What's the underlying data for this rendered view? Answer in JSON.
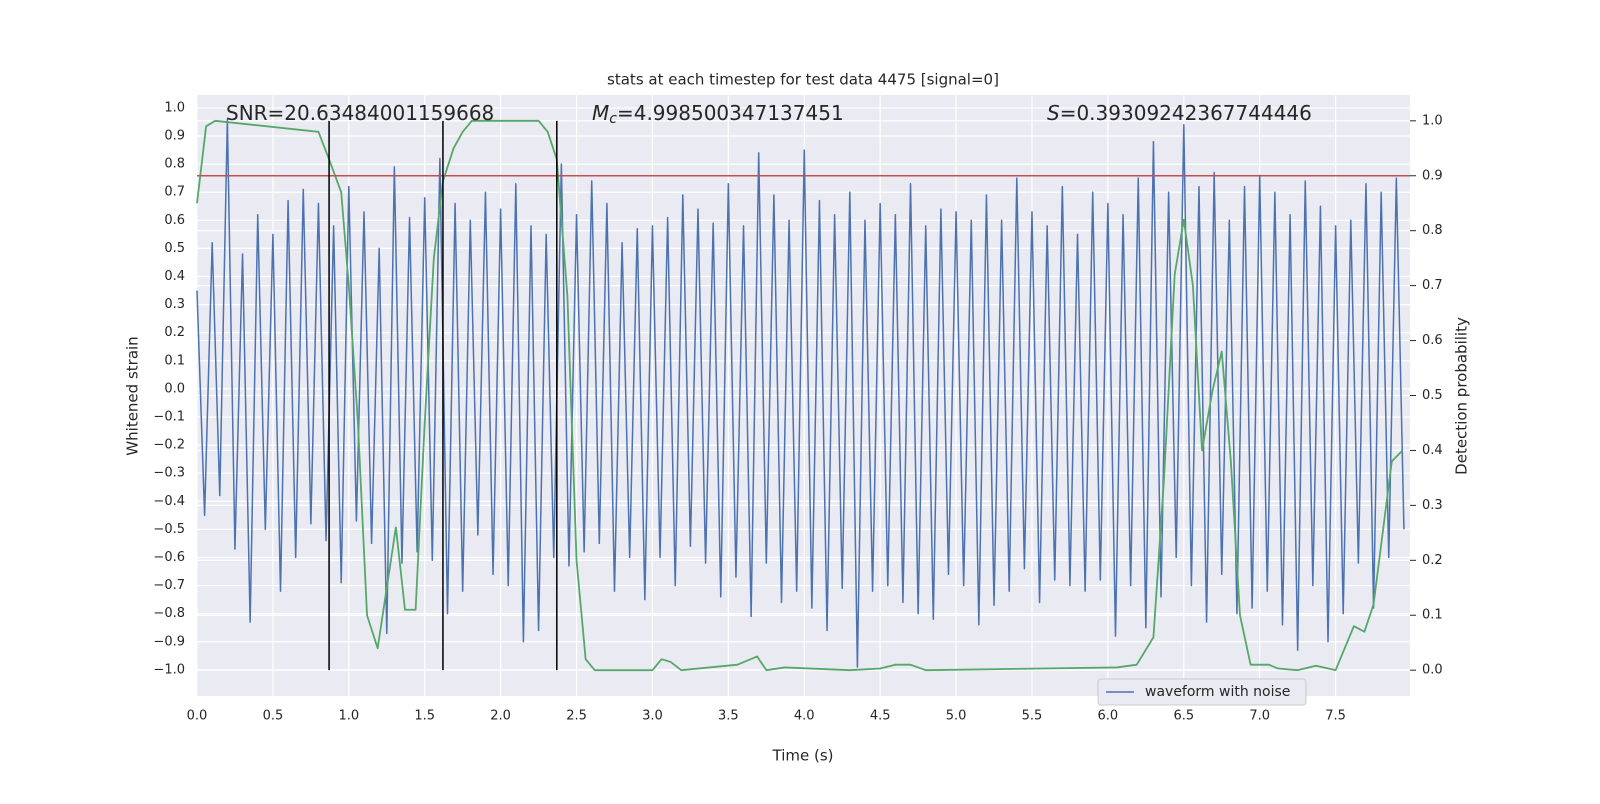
{
  "chart_data": {
    "type": "line",
    "title": "stats at each timestep for test data 4475 [signal=0]",
    "xlabel": "Time (s)",
    "ylabel": "Whitened strain",
    "y2label": "Detection probability",
    "annotations": [
      {
        "text": "SNR=20.63484001159668"
      },
      {
        "symbol": "M",
        "subscript": "c",
        "text": "=4.998500347137451"
      },
      {
        "symbol": "S",
        "text": "=0.39309242367744446"
      }
    ],
    "xlim": [
      0,
      7.99
    ],
    "ylim": [
      -1.093,
      1.046
    ],
    "y2lim": [
      -0.047,
      1.047
    ],
    "xticks": [
      {
        "value": 0,
        "label": "0.0"
      },
      0.5,
      {
        "value": 1,
        "label": "1.0"
      },
      1.5,
      {
        "value": 2,
        "label": "2.0"
      },
      2.5,
      {
        "value": 3,
        "label": "3.0"
      },
      3.5,
      {
        "value": 4,
        "label": "4.0"
      },
      4.5,
      {
        "value": 5,
        "label": "5.0"
      },
      5.5,
      {
        "value": 6,
        "label": "6.0"
      },
      6.5,
      {
        "value": 7,
        "label": "7.0"
      },
      7.5
    ],
    "yticks": [
      {
        "value": -1,
        "label": "−1.0"
      },
      {
        "value": -0.9,
        "label": "−0.9"
      },
      {
        "value": -0.8,
        "label": "−0.8"
      },
      {
        "value": -0.7,
        "label": "−0.7"
      },
      {
        "value": -0.6,
        "label": "−0.6"
      },
      {
        "value": -0.5,
        "label": "−0.5"
      },
      {
        "value": -0.4,
        "label": "−0.4"
      },
      {
        "value": -0.3,
        "label": "−0.3"
      },
      {
        "value": -0.2,
        "label": "−0.2"
      },
      {
        "value": -0.1,
        "label": "−0.1"
      },
      {
        "value": 0,
        "label": "0.0"
      },
      0.1,
      0.2,
      0.3,
      0.4,
      0.5,
      0.6,
      0.7,
      0.8,
      0.9,
      {
        "value": 1,
        "label": "1.0"
      }
    ],
    "y2ticks": [
      {
        "value": 0,
        "label": "0.0"
      },
      0.1,
      0.2,
      0.3,
      0.4,
      0.5,
      0.6,
      0.7,
      0.8,
      0.9,
      {
        "value": 1,
        "label": "1.0"
      }
    ],
    "grid": true,
    "legend": "lower right",
    "series": [
      {
        "name": "waveform with noise",
        "color": "#4c72b0",
        "x": [
          0,
          0.05,
          0.1,
          0.15,
          0.2,
          0.25,
          0.3,
          0.35,
          0.4,
          0.45,
          0.5,
          0.55,
          0.6,
          0.65,
          0.7,
          0.75,
          0.8,
          0.85,
          0.9,
          0.95,
          1,
          1.05,
          1.1,
          1.15,
          1.2,
          1.25,
          1.3,
          1.35,
          1.4,
          1.45,
          1.5,
          1.55,
          1.6,
          1.65,
          1.7,
          1.75,
          1.8,
          1.85,
          1.9,
          1.95,
          2,
          2.05,
          2.1,
          2.15,
          2.2,
          2.25,
          2.3,
          2.35,
          2.4,
          2.45,
          2.5,
          2.55,
          2.6,
          2.65,
          2.7,
          2.75,
          2.8,
          2.85,
          2.9,
          2.95,
          3,
          3.05,
          3.1,
          3.15,
          3.2,
          3.25,
          3.3,
          3.35,
          3.4,
          3.45,
          3.5,
          3.55,
          3.6,
          3.65,
          3.7,
          3.75,
          3.8,
          3.85,
          3.9,
          3.95,
          4,
          4.05,
          4.1,
          4.15,
          4.2,
          4.25,
          4.3,
          4.35,
          4.4,
          4.45,
          4.5,
          4.55,
          4.6,
          4.65,
          4.7,
          4.75,
          4.8,
          4.85,
          4.9,
          4.95,
          5,
          5.05,
          5.1,
          5.15,
          5.2,
          5.25,
          5.3,
          5.35,
          5.4,
          5.45,
          5.5,
          5.55,
          5.6,
          5.65,
          5.7,
          5.75,
          5.8,
          5.85,
          5.9,
          5.95,
          6,
          6.05,
          6.1,
          6.15,
          6.2,
          6.25,
          6.3,
          6.35,
          6.4,
          6.45,
          6.5,
          6.55,
          6.6,
          6.65,
          6.7,
          6.75,
          6.8,
          6.85,
          6.9,
          6.95,
          7,
          7.05,
          7.1,
          7.15,
          7.2,
          7.25,
          7.3,
          7.35,
          7.4,
          7.45,
          7.5,
          7.55,
          7.6,
          7.65,
          7.7,
          7.75,
          7.8,
          7.85,
          7.9,
          7.95
        ],
        "values": [
          0.35,
          -0.45,
          0.52,
          -0.38,
          0.96,
          -0.57,
          0.48,
          -0.83,
          0.62,
          -0.5,
          0.55,
          -0.72,
          0.67,
          -0.6,
          0.71,
          -0.48,
          0.66,
          -0.54,
          0.58,
          -0.69,
          0.72,
          -0.47,
          0.63,
          -0.55,
          0.5,
          -0.87,
          0.79,
          -0.62,
          0.61,
          -0.58,
          0.68,
          -0.61,
          0.82,
          -0.8,
          0.66,
          -0.72,
          0.6,
          -0.52,
          0.7,
          -0.66,
          0.64,
          -0.7,
          0.73,
          -0.9,
          0.58,
          -0.86,
          0.55,
          -0.6,
          0.8,
          -0.63,
          0.62,
          -0.58,
          0.74,
          -0.55,
          0.66,
          -0.72,
          0.52,
          -0.6,
          0.57,
          -0.75,
          0.58,
          -0.6,
          0.61,
          -0.7,
          0.69,
          -0.56,
          0.64,
          -0.62,
          0.59,
          -0.74,
          0.73,
          -0.67,
          0.58,
          -0.81,
          0.84,
          -0.62,
          0.69,
          -0.76,
          0.6,
          -0.72,
          0.85,
          -0.78,
          0.67,
          -0.86,
          0.62,
          -0.71,
          0.7,
          -0.99,
          0.6,
          -0.72,
          0.66,
          -0.7,
          0.62,
          -0.76,
          0.73,
          -0.8,
          0.58,
          -0.82,
          0.64,
          -0.66,
          0.63,
          -0.7,
          0.6,
          -0.84,
          0.69,
          -0.77,
          0.6,
          -0.72,
          0.75,
          -0.64,
          0.63,
          -0.76,
          0.58,
          -0.68,
          0.72,
          -0.7,
          0.55,
          -0.72,
          0.7,
          -0.68,
          0.66,
          -0.88,
          0.62,
          -0.7,
          0.75,
          -0.85,
          0.88,
          -0.74,
          0.7,
          -0.6,
          0.94,
          -0.7,
          0.72,
          -0.83,
          0.77,
          -0.66,
          0.6,
          -0.8,
          0.72,
          -0.78,
          0.76,
          -0.72,
          0.7,
          -0.84,
          0.62,
          -0.93,
          0.74,
          -0.7,
          0.65,
          -0.9,
          0.58,
          -0.8,
          0.6,
          -0.62,
          0.73,
          -0.78,
          0.7,
          -0.6,
          0.75,
          -0.5
        ]
      },
      {
        "color": "#55a868",
        "axis": "y2",
        "x": [
          0,
          0.06,
          0.12,
          0.8,
          0.87,
          0.95,
          1,
          1.06,
          1.12,
          1.19,
          1.31,
          1.37,
          1.44,
          1.5,
          1.56,
          1.62,
          1.69,
          1.75,
          1.81,
          2.25,
          2.31,
          2.37,
          2.44,
          2.5,
          2.56,
          2.62,
          3,
          3.06,
          3.12,
          3.19,
          3.56,
          3.69,
          3.75,
          3.87,
          4.3,
          4.5,
          4.6,
          4.7,
          4.8,
          6.06,
          6.19,
          6.3,
          6.37,
          6.44,
          6.5,
          6.56,
          6.62,
          6.69,
          6.75,
          6.81,
          6.87,
          6.94,
          7.06,
          7.12,
          7.25,
          7.37,
          7.5,
          7.62,
          7.69,
          7.75,
          7.81,
          7.87,
          7.94
        ],
        "values": [
          0.85,
          0.99,
          1,
          0.98,
          0.93,
          0.87,
          0.7,
          0.45,
          0.1,
          0.04,
          0.26,
          0.11,
          0.11,
          0.45,
          0.75,
          0.89,
          0.95,
          0.98,
          1,
          1,
          0.98,
          0.93,
          0.68,
          0.2,
          0.02,
          0,
          0,
          0.02,
          0.015,
          0,
          0.01,
          0.025,
          0,
          0.005,
          0,
          0.003,
          0.01,
          0.01,
          0,
          0.005,
          0.01,
          0.06,
          0.35,
          0.72,
          0.82,
          0.7,
          0.4,
          0.51,
          0.58,
          0.38,
          0.1,
          0.01,
          0.01,
          0.003,
          0,
          0.008,
          0,
          0.08,
          0.07,
          0.12,
          0.25,
          0.38,
          0.4
        ]
      }
    ],
    "threshold_y2": 0.9,
    "threshold_color": "#c44e52",
    "vlines": [
      0.87,
      1.62,
      2.37
    ],
    "vline_y2_range": [
      0,
      1
    ],
    "vline_color": "#000000"
  }
}
